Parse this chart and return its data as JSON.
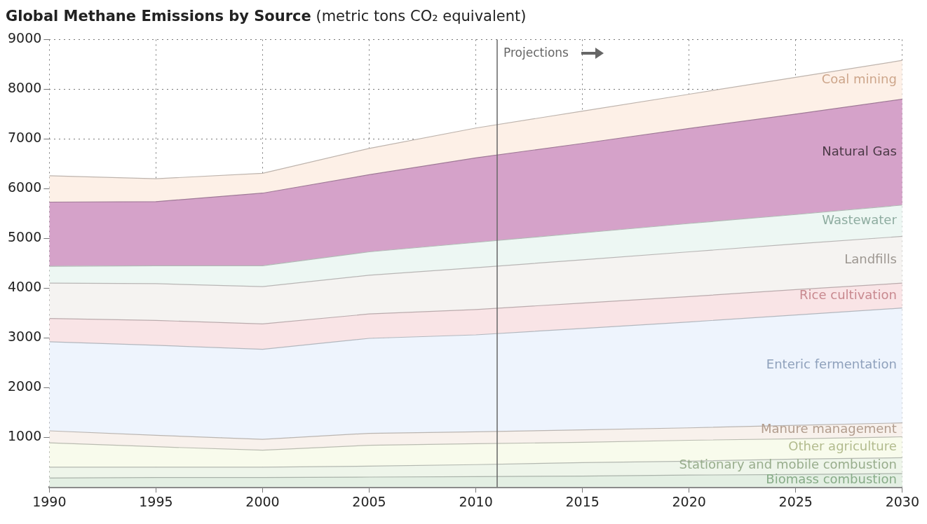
{
  "chart_data": {
    "type": "area",
    "title": "Global Methane Emissions by Source",
    "subtitle": "(metric tons CO₂ equivalent)",
    "stacked": true,
    "x": [
      1990,
      1995,
      2000,
      2005,
      2010,
      2015,
      2020,
      2025,
      2030
    ],
    "xlim": [
      1990,
      2030
    ],
    "xticks": [
      1990,
      1995,
      2000,
      2005,
      2010,
      2015,
      2020,
      2025,
      2030
    ],
    "ylim": [
      0,
      9000
    ],
    "yticks": [
      1000,
      2000,
      3000,
      4000,
      5000,
      6000,
      7000,
      8000,
      9000
    ],
    "grid": true,
    "legend": false,
    "series": [
      {
        "name": "Biomass combustion",
        "color": "#e3efe3",
        "values": [
          180,
          190,
          190,
          200,
          210,
          220,
          240,
          250,
          270
        ]
      },
      {
        "name": "Stationary and mobile combustion",
        "color": "#eef5ea",
        "values": [
          220,
          210,
          210,
          220,
          240,
          270,
          280,
          310,
          320
        ]
      },
      {
        "name": "Other agriculture",
        "color": "#f8fbec",
        "values": [
          490,
          410,
          340,
          420,
          420,
          410,
          420,
          410,
          420
        ]
      },
      {
        "name": "Manure management",
        "color": "#f8f1ec",
        "values": [
          240,
          230,
          220,
          240,
          240,
          250,
          250,
          270,
          280
        ]
      },
      {
        "name": "Enteric fermentation",
        "color": "#eef4fd",
        "values": [
          1790,
          1810,
          1810,
          1910,
          1950,
          2040,
          2130,
          2220,
          2310
        ]
      },
      {
        "name": "Rice cultivation",
        "color": "#f9e4e6",
        "values": [
          470,
          500,
          510,
          490,
          510,
          510,
          510,
          510,
          500
        ]
      },
      {
        "name": "Landfills",
        "color": "#f5f3f1",
        "values": [
          710,
          740,
          750,
          780,
          840,
          870,
          900,
          920,
          940
        ]
      },
      {
        "name": "Wastewater",
        "color": "#edf7f3",
        "values": [
          340,
          360,
          420,
          470,
          510,
          540,
          570,
          590,
          630
        ]
      },
      {
        "name": "Natural Gas",
        "color": "#d5a2c9",
        "values": [
          1290,
          1290,
          1460,
          1550,
          1700,
          1800,
          1910,
          2020,
          2130
        ]
      },
      {
        "name": "Coal mining",
        "color": "#fdf0e7",
        "values": [
          530,
          460,
          400,
          530,
          600,
          650,
          690,
          740,
          780
        ]
      }
    ],
    "ref_lines": [
      {
        "axis": "x",
        "value": 2011,
        "label": "Projections",
        "color": "#666666"
      }
    ]
  }
}
